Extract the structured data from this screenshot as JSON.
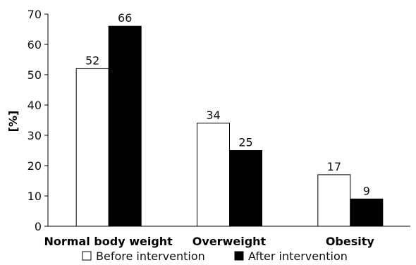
{
  "chart_data": {
    "type": "bar",
    "ylabel": "[%]",
    "xlabel": "",
    "ylim": [
      0,
      70
    ],
    "yticks": [
      0,
      10,
      20,
      30,
      40,
      50,
      60,
      70
    ],
    "categories": [
      "Normal body weight",
      "Overweight",
      "Obesity"
    ],
    "series": [
      {
        "name": "Before intervention",
        "values": [
          52,
          34,
          17
        ],
        "color": "#ffffff",
        "stroke": "#000000"
      },
      {
        "name": "After intervention",
        "values": [
          66,
          25,
          9
        ],
        "color": "#000000",
        "stroke": "#000000"
      }
    ],
    "data_labels": true,
    "grid": false,
    "legend_position": "bottom"
  }
}
